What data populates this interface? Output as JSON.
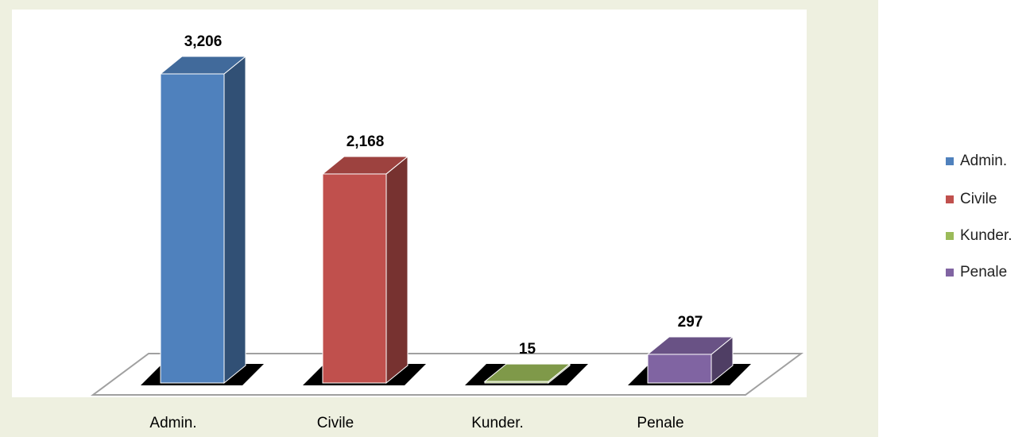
{
  "chart_data": {
    "type": "bar3d",
    "categories": [
      "Admin.",
      "Civile",
      "Kunder.",
      "Penale"
    ],
    "values": [
      3206,
      2168,
      15,
      297
    ],
    "value_labels": [
      "3,206",
      "2,168",
      "15",
      "297"
    ],
    "colors": [
      "#4f81bd",
      "#c0504d",
      "#9bbb59",
      "#8064a2"
    ],
    "legend": "right"
  }
}
